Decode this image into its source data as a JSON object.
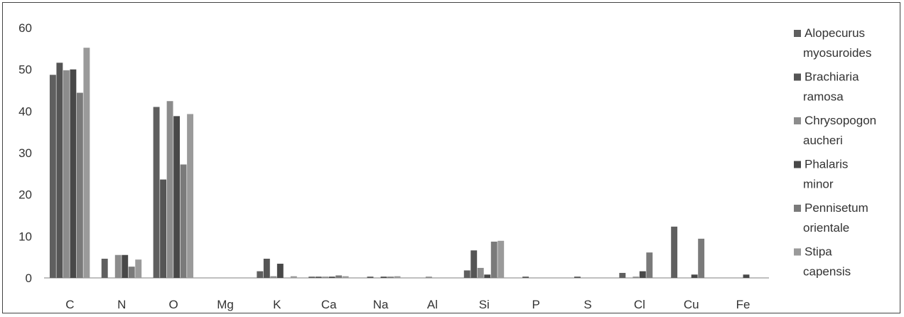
{
  "chart_data": {
    "type": "bar",
    "categories": [
      "C",
      "N",
      "O",
      "Mg",
      "K",
      "Ca",
      "Na",
      "Al",
      "Si",
      "P",
      "S",
      "Cl",
      "Cu",
      "Fe"
    ],
    "ylim": [
      0,
      60
    ],
    "yticks": [
      0,
      10,
      20,
      30,
      40,
      50,
      60
    ],
    "grid": false,
    "legend_position": "right",
    "series": [
      {
        "name": "Alopecurus myosuroides",
        "name_lines": [
          "Alopecurus",
          "myosuroides"
        ],
        "color": "#5f5f5f",
        "values": [
          48.7,
          4.6,
          41.0,
          0,
          1.6,
          0.3,
          0,
          0,
          1.8,
          0,
          0,
          1.2,
          12.3,
          0
        ]
      },
      {
        "name": "Brachiaria ramosa",
        "name_lines": [
          "Brachiaria",
          "ramosa"
        ],
        "color": "#555555",
        "values": [
          51.6,
          0,
          23.6,
          0,
          4.6,
          0.3,
          0.3,
          0,
          6.6,
          0.3,
          0.3,
          0,
          0,
          0
        ]
      },
      {
        "name": "Chrysopogon aucheri",
        "name_lines": [
          "Chrysopogon",
          "aucheri"
        ],
        "color": "#8c8c8c",
        "values": [
          49.8,
          5.5,
          42.4,
          0,
          0.4,
          0.3,
          0,
          0.3,
          2.4,
          0,
          0,
          0.3,
          0,
          0
        ]
      },
      {
        "name": "Phalaris minor",
        "name_lines": [
          "Phalaris",
          "minor"
        ],
        "color": "#484848",
        "values": [
          50.0,
          5.5,
          38.8,
          0,
          3.4,
          0.3,
          0.3,
          0,
          0.8,
          0,
          0,
          1.6,
          0.8,
          0.8
        ]
      },
      {
        "name": "Pennisetum orientale",
        "name_lines": [
          "Pennisetum",
          "orientale"
        ],
        "color": "#7a7a7a",
        "values": [
          44.4,
          2.7,
          27.2,
          0,
          0,
          0.6,
          0.3,
          0,
          8.7,
          0,
          0,
          6.1,
          9.4,
          0
        ]
      },
      {
        "name": "Stipa capensis",
        "name_lines": [
          "Stipa",
          "capensis"
        ],
        "color": "#9a9a9a",
        "values": [
          55.2,
          4.4,
          39.3,
          0,
          0.4,
          0.4,
          0.4,
          0,
          8.9,
          0,
          0,
          0,
          0,
          0
        ]
      }
    ]
  }
}
